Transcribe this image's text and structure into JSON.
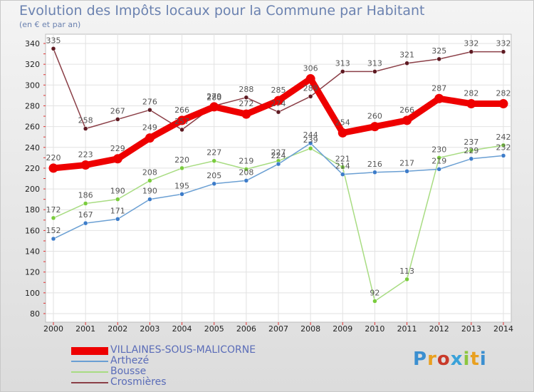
{
  "title": "Evolution des Impôts locaux pour la Commune par Habitant",
  "subtitle": "(en € et par an)",
  "logo": {
    "text": "Proxiti",
    "colors": [
      "#3b8fd0",
      "#e9a020",
      "#c93a2a",
      "#3aa2d9",
      "#8cc63f",
      "#e9a020",
      "#3b8fd0"
    ]
  },
  "chart_data": {
    "type": "line",
    "title": "Evolution des Impôts locaux pour la Commune par Habitant",
    "ylabel": "(en € et par an)",
    "xlabel": "",
    "categories": [
      "2000",
      "2001",
      "2002",
      "2003",
      "2004",
      "2005",
      "2006",
      "2007",
      "2008",
      "2009",
      "2010",
      "2011",
      "2012",
      "2013",
      "2014"
    ],
    "ylim": [
      80,
      340
    ],
    "yticks": [
      80,
      100,
      120,
      140,
      160,
      180,
      200,
      220,
      240,
      260,
      280,
      300,
      320,
      340
    ],
    "grid": true,
    "legend_position": "bottom-left",
    "series": [
      {
        "name": "VILLAINES-SOUS-MALICORNE",
        "color": "#ee0000",
        "thick": true,
        "values": [
          220,
          223,
          229,
          249,
          266,
          279,
          272,
          285,
          306,
          254,
          260,
          266,
          287,
          282,
          282
        ]
      },
      {
        "name": "Arthezé",
        "color": "#6a9fd3",
        "marker": "#3d7cc9",
        "thick": false,
        "values": [
          152,
          167,
          171,
          190,
          195,
          205,
          208,
          224,
          244,
          214,
          216,
          217,
          219,
          229,
          232
        ]
      },
      {
        "name": "Bousse",
        "color": "#a8dc82",
        "marker": "#7acc3d",
        "thick": false,
        "values": [
          172,
          186,
          190,
          208,
          220,
          227,
          219,
          227,
          239,
          221,
          92,
          113,
          230,
          237,
          242
        ]
      },
      {
        "name": "Crosmières",
        "color": "#8b3f47",
        "marker": "#5e1a22",
        "thick": false,
        "values": [
          335,
          258,
          267,
          276,
          257,
          280,
          288,
          274,
          289,
          313,
          313,
          321,
          325,
          332,
          332
        ]
      }
    ]
  }
}
